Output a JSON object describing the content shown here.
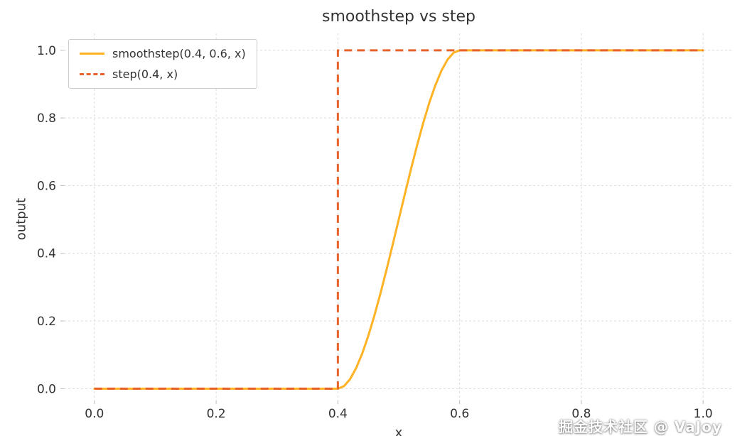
{
  "watermark": "掘金技术社区 @ VaJoy",
  "chart_data": {
    "type": "line",
    "title": "smoothstep vs step",
    "xlabel": "x",
    "ylabel": "output",
    "xlim": [
      -0.05,
      1.05
    ],
    "ylim": [
      -0.035,
      1.05
    ],
    "xticks": [
      "0.0",
      "0.2",
      "0.4",
      "0.6",
      "0.8",
      "1.0"
    ],
    "yticks": [
      "0.0",
      "0.2",
      "0.4",
      "0.6",
      "0.8",
      "1.0"
    ],
    "xtick_values": [
      0,
      0.2,
      0.4,
      0.6,
      0.8,
      1.0
    ],
    "ytick_values": [
      0,
      0.2,
      0.4,
      0.6,
      0.8,
      1.0
    ],
    "grid": true,
    "grid_color": "#dcdcdc",
    "legend_position": "upper left",
    "series": [
      {
        "name": "smoothstep(0.4, 0.6, x)",
        "color": "#FFB224",
        "style": "solid",
        "width": 3,
        "x": [
          0,
          0.4,
          0.41,
          0.42,
          0.43,
          0.44,
          0.45,
          0.46,
          0.47,
          0.48,
          0.49,
          0.5,
          0.51,
          0.52,
          0.53,
          0.54,
          0.55,
          0.56,
          0.57,
          0.58,
          0.59,
          0.6,
          1.0
        ],
        "y": [
          0,
          0,
          0.00725,
          0.028,
          0.06075,
          0.104,
          0.15625,
          0.216,
          0.28175,
          0.352,
          0.42525,
          0.5,
          0.57475,
          0.648,
          0.71825,
          0.784,
          0.84375,
          0.896,
          0.93925,
          0.972,
          0.99275,
          1,
          1
        ]
      },
      {
        "name": "step(0.4, x)",
        "color": "#E8632C",
        "style": "dashed",
        "width": 3,
        "x": [
          0,
          0.4,
          0.4,
          1.0
        ],
        "y": [
          0,
          0,
          1,
          1
        ]
      }
    ]
  }
}
